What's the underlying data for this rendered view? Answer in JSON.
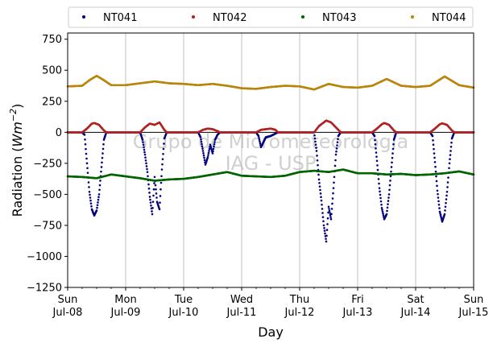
{
  "chart_data": {
    "type": "scatter",
    "xlabel": "Day",
    "ylabel": "Radiation (Wm^-2)",
    "ylabel_prefix": "Radiation (",
    "ylabel_unit": "Wm",
    "ylabel_exp": "−2",
    "ylabel_suffix": ")",
    "xlim": [
      "2018-07-08",
      "2018-07-15"
    ],
    "ylim": [
      -1250,
      800
    ],
    "yticks": [
      -1250,
      -1000,
      -750,
      -500,
      -250,
      0,
      250,
      500,
      750
    ],
    "ytick_labels": [
      "−1250",
      "−1000",
      "−750",
      "−500",
      "−250",
      "0",
      "250",
      "500",
      "750"
    ],
    "xticks": [
      {
        "date": "2018-07-08",
        "day": "Sun",
        "date_label": "Jul-08"
      },
      {
        "date": "2018-07-09",
        "day": "Mon",
        "date_label": "Jul-09"
      },
      {
        "date": "2018-07-10",
        "day": "Tue",
        "date_label": "Jul-10"
      },
      {
        "date": "2018-07-11",
        "day": "Wed",
        "date_label": "Jul-11"
      },
      {
        "date": "2018-07-12",
        "day": "Thu",
        "date_label": "Jul-12"
      },
      {
        "date": "2018-07-13",
        "day": "Fri",
        "date_label": "Jul-13"
      },
      {
        "date": "2018-07-14",
        "day": "Sat",
        "date_label": "Jul-14"
      },
      {
        "date": "2018-07-15",
        "day": "Sun",
        "date_label": "Jul-15"
      }
    ],
    "grid": "x",
    "legend_placement": "top",
    "watermark": [
      "Grupo de Micrometeorologia",
      "IAG - USP"
    ],
    "series": [
      {
        "name": "NT041",
        "color": "#00007f",
        "points": [
          [
            "2018-07-08 00:00",
            0
          ],
          [
            "2018-07-08 06:00",
            0
          ],
          [
            "2018-07-08 07:00",
            -20
          ],
          [
            "2018-07-08 08:00",
            -250
          ],
          [
            "2018-07-08 09:00",
            -480
          ],
          [
            "2018-07-08 10:00",
            -620
          ],
          [
            "2018-07-08 11:00",
            -670
          ],
          [
            "2018-07-08 12:00",
            -630
          ],
          [
            "2018-07-08 13:00",
            -500
          ],
          [
            "2018-07-08 14:00",
            -280
          ],
          [
            "2018-07-08 15:00",
            -60
          ],
          [
            "2018-07-08 16:00",
            0
          ],
          [
            "2018-07-09 06:00",
            0
          ],
          [
            "2018-07-09 07:00",
            -60
          ],
          [
            "2018-07-09 08:00",
            -180
          ],
          [
            "2018-07-09 09:00",
            -320
          ],
          [
            "2018-07-09 10:00",
            -520
          ],
          [
            "2018-07-09 11:00",
            -660
          ],
          [
            "2018-07-09 12:00",
            -360
          ],
          [
            "2018-07-09 13:00",
            -560
          ],
          [
            "2018-07-09 14:00",
            -620
          ],
          [
            "2018-07-09 15:00",
            -300
          ],
          [
            "2018-07-09 16:00",
            -50
          ],
          [
            "2018-07-09 17:00",
            0
          ],
          [
            "2018-07-10 06:00",
            0
          ],
          [
            "2018-07-10 07:00",
            -40
          ],
          [
            "2018-07-10 08:00",
            -150
          ],
          [
            "2018-07-10 09:00",
            -260
          ],
          [
            "2018-07-10 10:00",
            -200
          ],
          [
            "2018-07-10 11:00",
            -100
          ],
          [
            "2018-07-10 12:00",
            -170
          ],
          [
            "2018-07-10 13:00",
            -60
          ],
          [
            "2018-07-10 14:00",
            -20
          ],
          [
            "2018-07-10 15:00",
            0
          ],
          [
            "2018-07-11 06:00",
            0
          ],
          [
            "2018-07-11 07:00",
            -30
          ],
          [
            "2018-07-11 08:00",
            -120
          ],
          [
            "2018-07-11 09:00",
            -80
          ],
          [
            "2018-07-11 10:00",
            -40
          ],
          [
            "2018-07-11 12:00",
            -30
          ],
          [
            "2018-07-11 13:00",
            -20
          ],
          [
            "2018-07-11 14:00",
            -10
          ],
          [
            "2018-07-11 15:00",
            0
          ],
          [
            "2018-07-12 06:00",
            0
          ],
          [
            "2018-07-12 07:00",
            -150
          ],
          [
            "2018-07-12 08:00",
            -380
          ],
          [
            "2018-07-12 09:00",
            -550
          ],
          [
            "2018-07-12 10:00",
            -750
          ],
          [
            "2018-07-12 11:00",
            -880
          ],
          [
            "2018-07-12 12:00",
            -600
          ],
          [
            "2018-07-12 13:00",
            -700
          ],
          [
            "2018-07-12 14:00",
            -450
          ],
          [
            "2018-07-12 15:00",
            -180
          ],
          [
            "2018-07-12 16:00",
            -30
          ],
          [
            "2018-07-12 17:00",
            0
          ],
          [
            "2018-07-13 06:00",
            0
          ],
          [
            "2018-07-13 07:00",
            -30
          ],
          [
            "2018-07-13 08:00",
            -230
          ],
          [
            "2018-07-13 09:00",
            -450
          ],
          [
            "2018-07-13 10:00",
            -610
          ],
          [
            "2018-07-13 11:00",
            -700
          ],
          [
            "2018-07-13 12:00",
            -660
          ],
          [
            "2018-07-13 13:00",
            -500
          ],
          [
            "2018-07-13 14:00",
            -280
          ],
          [
            "2018-07-13 15:00",
            -60
          ],
          [
            "2018-07-13 16:00",
            0
          ],
          [
            "2018-07-14 06:00",
            0
          ],
          [
            "2018-07-14 07:00",
            -30
          ],
          [
            "2018-07-14 08:00",
            -240
          ],
          [
            "2018-07-14 09:00",
            -470
          ],
          [
            "2018-07-14 10:00",
            -640
          ],
          [
            "2018-07-14 11:00",
            -720
          ],
          [
            "2018-07-14 12:00",
            -660
          ],
          [
            "2018-07-14 13:00",
            -480
          ],
          [
            "2018-07-14 14:00",
            -250
          ],
          [
            "2018-07-14 15:00",
            -50
          ],
          [
            "2018-07-14 16:00",
            0
          ],
          [
            "2018-07-15 00:00",
            0
          ]
        ]
      },
      {
        "name": "NT042",
        "color": "#b22222",
        "points": [
          [
            "2018-07-08 00:00",
            0
          ],
          [
            "2018-07-08 06:00",
            0
          ],
          [
            "2018-07-08 08:00",
            30
          ],
          [
            "2018-07-08 10:00",
            70
          ],
          [
            "2018-07-08 11:00",
            75
          ],
          [
            "2018-07-08 13:00",
            60
          ],
          [
            "2018-07-08 15:00",
            15
          ],
          [
            "2018-07-08 16:00",
            0
          ],
          [
            "2018-07-09 06:00",
            0
          ],
          [
            "2018-07-09 08:00",
            40
          ],
          [
            "2018-07-09 10:00",
            70
          ],
          [
            "2018-07-09 12:00",
            60
          ],
          [
            "2018-07-09 14:00",
            80
          ],
          [
            "2018-07-09 16:00",
            20
          ],
          [
            "2018-07-09 17:00",
            0
          ],
          [
            "2018-07-10 06:00",
            0
          ],
          [
            "2018-07-10 08:00",
            20
          ],
          [
            "2018-07-10 10:00",
            30
          ],
          [
            "2018-07-10 12:00",
            25
          ],
          [
            "2018-07-10 14:00",
            10
          ],
          [
            "2018-07-10 15:00",
            0
          ],
          [
            "2018-07-11 06:00",
            0
          ],
          [
            "2018-07-11 08:00",
            20
          ],
          [
            "2018-07-11 10:00",
            25
          ],
          [
            "2018-07-11 12:00",
            30
          ],
          [
            "2018-07-11 14:00",
            20
          ],
          [
            "2018-07-11 15:00",
            0
          ],
          [
            "2018-07-12 06:00",
            0
          ],
          [
            "2018-07-12 08:00",
            50
          ],
          [
            "2018-07-12 10:00",
            80
          ],
          [
            "2018-07-12 11:00",
            95
          ],
          [
            "2018-07-12 13:00",
            80
          ],
          [
            "2018-07-12 15:00",
            40
          ],
          [
            "2018-07-12 17:00",
            0
          ],
          [
            "2018-07-13 06:00",
            0
          ],
          [
            "2018-07-13 08:00",
            30
          ],
          [
            "2018-07-13 10:00",
            65
          ],
          [
            "2018-07-13 11:00",
            75
          ],
          [
            "2018-07-13 13:00",
            60
          ],
          [
            "2018-07-13 15:00",
            15
          ],
          [
            "2018-07-13 16:00",
            0
          ],
          [
            "2018-07-14 06:00",
            0
          ],
          [
            "2018-07-14 08:00",
            30
          ],
          [
            "2018-07-14 10:00",
            65
          ],
          [
            "2018-07-14 11:00",
            72
          ],
          [
            "2018-07-14 13:00",
            60
          ],
          [
            "2018-07-14 15:00",
            15
          ],
          [
            "2018-07-14 16:00",
            0
          ],
          [
            "2018-07-15 00:00",
            0
          ]
        ]
      },
      {
        "name": "NT043",
        "color": "#006400",
        "points": [
          [
            "2018-07-08 00:00",
            -355
          ],
          [
            "2018-07-08 06:00",
            -360
          ],
          [
            "2018-07-08 12:00",
            -370
          ],
          [
            "2018-07-08 18:00",
            -340
          ],
          [
            "2018-07-09 00:00",
            -355
          ],
          [
            "2018-07-09 06:00",
            -370
          ],
          [
            "2018-07-09 12:00",
            -390
          ],
          [
            "2018-07-09 18:00",
            -380
          ],
          [
            "2018-07-10 00:00",
            -375
          ],
          [
            "2018-07-10 06:00",
            -360
          ],
          [
            "2018-07-10 12:00",
            -340
          ],
          [
            "2018-07-10 18:00",
            -320
          ],
          [
            "2018-07-11 00:00",
            -350
          ],
          [
            "2018-07-11 06:00",
            -355
          ],
          [
            "2018-07-11 12:00",
            -360
          ],
          [
            "2018-07-11 18:00",
            -350
          ],
          [
            "2018-07-12 00:00",
            -320
          ],
          [
            "2018-07-12 06:00",
            -310
          ],
          [
            "2018-07-12 12:00",
            -320
          ],
          [
            "2018-07-12 18:00",
            -300
          ],
          [
            "2018-07-13 00:00",
            -330
          ],
          [
            "2018-07-13 06:00",
            -330
          ],
          [
            "2018-07-13 12:00",
            -340
          ],
          [
            "2018-07-13 18:00",
            -335
          ],
          [
            "2018-07-14 00:00",
            -345
          ],
          [
            "2018-07-14 06:00",
            -340
          ],
          [
            "2018-07-14 12:00",
            -330
          ],
          [
            "2018-07-14 18:00",
            -315
          ],
          [
            "2018-07-15 00:00",
            -340
          ]
        ]
      },
      {
        "name": "NT044",
        "color": "#b8860b",
        "points": [
          [
            "2018-07-08 00:00",
            370
          ],
          [
            "2018-07-08 06:00",
            375
          ],
          [
            "2018-07-08 09:00",
            420
          ],
          [
            "2018-07-08 12:00",
            455
          ],
          [
            "2018-07-08 15:00",
            420
          ],
          [
            "2018-07-08 18:00",
            380
          ],
          [
            "2018-07-09 00:00",
            380
          ],
          [
            "2018-07-09 06:00",
            395
          ],
          [
            "2018-07-09 12:00",
            410
          ],
          [
            "2018-07-09 18:00",
            395
          ],
          [
            "2018-07-10 00:00",
            390
          ],
          [
            "2018-07-10 06:00",
            380
          ],
          [
            "2018-07-10 12:00",
            390
          ],
          [
            "2018-07-10 18:00",
            375
          ],
          [
            "2018-07-11 00:00",
            355
          ],
          [
            "2018-07-11 06:00",
            350
          ],
          [
            "2018-07-11 12:00",
            365
          ],
          [
            "2018-07-11 18:00",
            375
          ],
          [
            "2018-07-12 00:00",
            370
          ],
          [
            "2018-07-12 06:00",
            345
          ],
          [
            "2018-07-12 12:00",
            390
          ],
          [
            "2018-07-12 18:00",
            365
          ],
          [
            "2018-07-13 00:00",
            360
          ],
          [
            "2018-07-13 06:00",
            375
          ],
          [
            "2018-07-13 12:00",
            430
          ],
          [
            "2018-07-13 18:00",
            375
          ],
          [
            "2018-07-14 00:00",
            365
          ],
          [
            "2018-07-14 06:00",
            375
          ],
          [
            "2018-07-14 12:00",
            450
          ],
          [
            "2018-07-14 18:00",
            380
          ],
          [
            "2018-07-15 00:00",
            360
          ]
        ]
      }
    ]
  }
}
